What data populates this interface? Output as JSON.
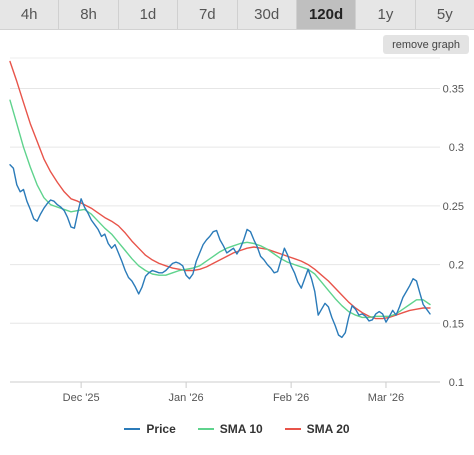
{
  "tabs": [
    {
      "label": "4h"
    },
    {
      "label": "8h"
    },
    {
      "label": "1d"
    },
    {
      "label": "7d"
    },
    {
      "label": "30d"
    },
    {
      "label": "120d",
      "active": true
    },
    {
      "label": "1y"
    },
    {
      "label": "5y"
    }
  ],
  "remove_graph_label": "remove graph",
  "colors": {
    "price": "#2b7bb9",
    "sma10": "#5fd38d",
    "sma20": "#e8544a"
  },
  "chart_data": {
    "type": "line",
    "title": "",
    "xlabel": "",
    "ylabel": "",
    "ylim": [
      0.1,
      0.37
    ],
    "y_ticks": [
      "0.1",
      "0.15",
      "0.2",
      "0.25",
      "0.3",
      "0.35"
    ],
    "x_ticks": [
      {
        "label": "Dec '25",
        "day": 21
      },
      {
        "label": "Jan '26",
        "day": 52
      },
      {
        "label": "Feb '26",
        "day": 83
      },
      {
        "label": "Mar '26",
        "day": 111
      }
    ],
    "x_range": [
      0,
      124
    ],
    "grid": true,
    "legend_position": "bottom",
    "series": [
      {
        "name": "Price",
        "color_key": "price",
        "points": [
          [
            0,
            0.285
          ],
          [
            1,
            0.282
          ],
          [
            2,
            0.268
          ],
          [
            3,
            0.262
          ],
          [
            4,
            0.264
          ],
          [
            5,
            0.254
          ],
          [
            6,
            0.247
          ],
          [
            7,
            0.239
          ],
          [
            8,
            0.237
          ],
          [
            9,
            0.243
          ],
          [
            10,
            0.248
          ],
          [
            11,
            0.252
          ],
          [
            12,
            0.255
          ],
          [
            13,
            0.254
          ],
          [
            14,
            0.251
          ],
          [
            15,
            0.249
          ],
          [
            16,
            0.246
          ],
          [
            17,
            0.24
          ],
          [
            18,
            0.232
          ],
          [
            19,
            0.231
          ],
          [
            20,
            0.244
          ],
          [
            21,
            0.256
          ],
          [
            22,
            0.249
          ],
          [
            23,
            0.244
          ],
          [
            24,
            0.238
          ],
          [
            25,
            0.234
          ],
          [
            26,
            0.23
          ],
          [
            27,
            0.224
          ],
          [
            28,
            0.226
          ],
          [
            29,
            0.218
          ],
          [
            30,
            0.214
          ],
          [
            31,
            0.217
          ],
          [
            32,
            0.21
          ],
          [
            33,
            0.203
          ],
          [
            34,
            0.195
          ],
          [
            35,
            0.189
          ],
          [
            36,
            0.186
          ],
          [
            37,
            0.181
          ],
          [
            38,
            0.175
          ],
          [
            39,
            0.181
          ],
          [
            40,
            0.19
          ],
          [
            41,
            0.193
          ],
          [
            42,
            0.195
          ],
          [
            43,
            0.194
          ],
          [
            44,
            0.193
          ],
          [
            45,
            0.193
          ],
          [
            46,
            0.195
          ],
          [
            47,
            0.198
          ],
          [
            48,
            0.201
          ],
          [
            49,
            0.202
          ],
          [
            50,
            0.201
          ],
          [
            51,
            0.199
          ],
          [
            52,
            0.191
          ],
          [
            53,
            0.188
          ],
          [
            54,
            0.192
          ],
          [
            55,
            0.203
          ],
          [
            56,
            0.21
          ],
          [
            57,
            0.217
          ],
          [
            58,
            0.221
          ],
          [
            59,
            0.224
          ],
          [
            60,
            0.228
          ],
          [
            61,
            0.229
          ],
          [
            62,
            0.221
          ],
          [
            63,
            0.216
          ],
          [
            64,
            0.21
          ],
          [
            65,
            0.212
          ],
          [
            66,
            0.214
          ],
          [
            67,
            0.209
          ],
          [
            68,
            0.214
          ],
          [
            69,
            0.221
          ],
          [
            70,
            0.23
          ],
          [
            71,
            0.228
          ],
          [
            72,
            0.221
          ],
          [
            73,
            0.215
          ],
          [
            74,
            0.207
          ],
          [
            75,
            0.204
          ],
          [
            76,
            0.2
          ],
          [
            77,
            0.197
          ],
          [
            78,
            0.193
          ],
          [
            79,
            0.194
          ],
          [
            80,
            0.204
          ],
          [
            81,
            0.214
          ],
          [
            82,
            0.208
          ],
          [
            83,
            0.199
          ],
          [
            84,
            0.193
          ],
          [
            85,
            0.185
          ],
          [
            86,
            0.18
          ],
          [
            87,
            0.188
          ],
          [
            88,
            0.196
          ],
          [
            89,
            0.188
          ],
          [
            90,
            0.177
          ],
          [
            91,
            0.157
          ],
          [
            92,
            0.162
          ],
          [
            93,
            0.167
          ],
          [
            94,
            0.164
          ],
          [
            95,
            0.155
          ],
          [
            96,
            0.148
          ],
          [
            97,
            0.14
          ],
          [
            98,
            0.138
          ],
          [
            99,
            0.142
          ],
          [
            100,
            0.155
          ],
          [
            101,
            0.165
          ],
          [
            102,
            0.162
          ],
          [
            103,
            0.157
          ],
          [
            104,
            0.158
          ],
          [
            105,
            0.156
          ],
          [
            106,
            0.152
          ],
          [
            107,
            0.153
          ],
          [
            108,
            0.158
          ],
          [
            109,
            0.16
          ],
          [
            110,
            0.158
          ],
          [
            111,
            0.151
          ],
          [
            112,
            0.156
          ],
          [
            113,
            0.161
          ],
          [
            114,
            0.157
          ],
          [
            115,
            0.164
          ],
          [
            116,
            0.172
          ],
          [
            117,
            0.177
          ],
          [
            118,
            0.182
          ],
          [
            119,
            0.188
          ],
          [
            120,
            0.186
          ],
          [
            121,
            0.176
          ],
          [
            122,
            0.166
          ],
          [
            123,
            0.162
          ],
          [
            124,
            0.158
          ]
        ]
      },
      {
        "name": "SMA 10",
        "color_key": "sma10",
        "points": [
          [
            0,
            0.34
          ],
          [
            2,
            0.32
          ],
          [
            4,
            0.3
          ],
          [
            6,
            0.283
          ],
          [
            8,
            0.268
          ],
          [
            10,
            0.257
          ],
          [
            12,
            0.251
          ],
          [
            14,
            0.249
          ],
          [
            16,
            0.247
          ],
          [
            18,
            0.245
          ],
          [
            20,
            0.246
          ],
          [
            22,
            0.247
          ],
          [
            24,
            0.243
          ],
          [
            26,
            0.237
          ],
          [
            28,
            0.231
          ],
          [
            30,
            0.226
          ],
          [
            32,
            0.219
          ],
          [
            34,
            0.212
          ],
          [
            36,
            0.205
          ],
          [
            38,
            0.199
          ],
          [
            40,
            0.195
          ],
          [
            42,
            0.192
          ],
          [
            44,
            0.191
          ],
          [
            46,
            0.191
          ],
          [
            48,
            0.193
          ],
          [
            50,
            0.195
          ],
          [
            52,
            0.196
          ],
          [
            54,
            0.197
          ],
          [
            56,
            0.199
          ],
          [
            58,
            0.203
          ],
          [
            60,
            0.207
          ],
          [
            62,
            0.211
          ],
          [
            64,
            0.214
          ],
          [
            66,
            0.216
          ],
          [
            68,
            0.218
          ],
          [
            70,
            0.219
          ],
          [
            72,
            0.218
          ],
          [
            74,
            0.216
          ],
          [
            76,
            0.213
          ],
          [
            78,
            0.209
          ],
          [
            80,
            0.205
          ],
          [
            82,
            0.202
          ],
          [
            84,
            0.2
          ],
          [
            86,
            0.198
          ],
          [
            88,
            0.196
          ],
          [
            90,
            0.192
          ],
          [
            92,
            0.185
          ],
          [
            94,
            0.178
          ],
          [
            96,
            0.171
          ],
          [
            98,
            0.165
          ],
          [
            100,
            0.16
          ],
          [
            102,
            0.157
          ],
          [
            104,
            0.155
          ],
          [
            106,
            0.155
          ],
          [
            108,
            0.156
          ],
          [
            110,
            0.156
          ],
          [
            112,
            0.156
          ],
          [
            114,
            0.158
          ],
          [
            116,
            0.162
          ],
          [
            118,
            0.166
          ],
          [
            120,
            0.17
          ],
          [
            122,
            0.17
          ],
          [
            124,
            0.166
          ]
        ]
      },
      {
        "name": "SMA 20",
        "color_key": "sma20",
        "points": [
          [
            0,
            0.373
          ],
          [
            2,
            0.356
          ],
          [
            4,
            0.338
          ],
          [
            6,
            0.32
          ],
          [
            8,
            0.305
          ],
          [
            10,
            0.29
          ],
          [
            12,
            0.279
          ],
          [
            14,
            0.27
          ],
          [
            16,
            0.262
          ],
          [
            18,
            0.256
          ],
          [
            20,
            0.254
          ],
          [
            22,
            0.251
          ],
          [
            24,
            0.248
          ],
          [
            26,
            0.244
          ],
          [
            28,
            0.24
          ],
          [
            30,
            0.237
          ],
          [
            32,
            0.233
          ],
          [
            34,
            0.227
          ],
          [
            36,
            0.22
          ],
          [
            38,
            0.214
          ],
          [
            40,
            0.208
          ],
          [
            42,
            0.204
          ],
          [
            44,
            0.201
          ],
          [
            46,
            0.199
          ],
          [
            48,
            0.197
          ],
          [
            50,
            0.196
          ],
          [
            52,
            0.195
          ],
          [
            54,
            0.195
          ],
          [
            56,
            0.196
          ],
          [
            58,
            0.198
          ],
          [
            60,
            0.201
          ],
          [
            62,
            0.204
          ],
          [
            64,
            0.207
          ],
          [
            66,
            0.21
          ],
          [
            68,
            0.212
          ],
          [
            70,
            0.214
          ],
          [
            72,
            0.215
          ],
          [
            74,
            0.214
          ],
          [
            76,
            0.213
          ],
          [
            78,
            0.211
          ],
          [
            80,
            0.209
          ],
          [
            82,
            0.207
          ],
          [
            84,
            0.205
          ],
          [
            86,
            0.203
          ],
          [
            88,
            0.2
          ],
          [
            90,
            0.196
          ],
          [
            92,
            0.191
          ],
          [
            94,
            0.186
          ],
          [
            96,
            0.18
          ],
          [
            98,
            0.174
          ],
          [
            100,
            0.168
          ],
          [
            102,
            0.163
          ],
          [
            104,
            0.159
          ],
          [
            106,
            0.156
          ],
          [
            108,
            0.154
          ],
          [
            110,
            0.154
          ],
          [
            112,
            0.155
          ],
          [
            114,
            0.157
          ],
          [
            116,
            0.159
          ],
          [
            118,
            0.161
          ],
          [
            120,
            0.162
          ],
          [
            122,
            0.163
          ],
          [
            124,
            0.163
          ]
        ]
      }
    ]
  }
}
